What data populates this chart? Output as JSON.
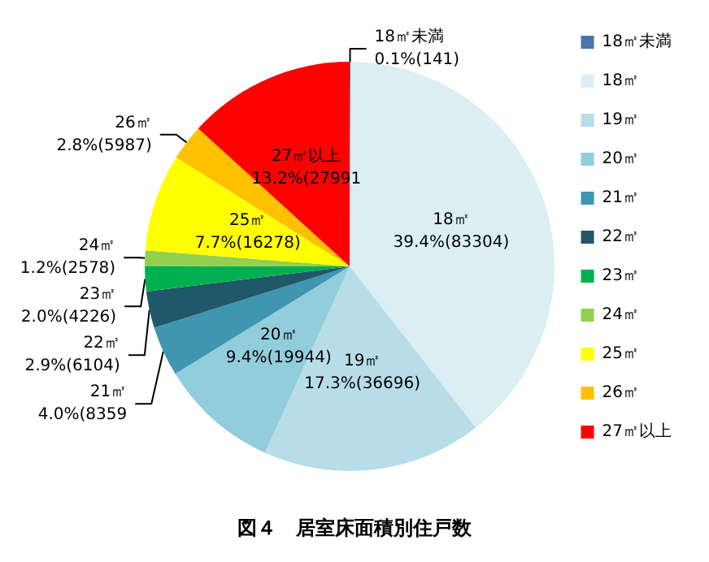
{
  "chart_data": {
    "type": "pie",
    "title": "図４　居室床面積別住戸数",
    "categories": [
      "18㎡未満",
      "18㎡",
      "19㎡",
      "20㎡",
      "21㎡",
      "22㎡",
      "23㎡",
      "24㎡",
      "25㎡",
      "26㎡",
      "27㎡以上"
    ],
    "values": [
      141,
      83304,
      36696,
      19944,
      8359,
      6104,
      4226,
      2578,
      16278,
      5987,
      27991
    ],
    "value_labels": [
      "0.1%(141)",
      "39.4%(83304)",
      "17.3%(36696)",
      "9.4%(19944)",
      "4.0%(8359",
      "2.9%(6104)",
      "2.0%(4226)",
      "1.2%(2578)",
      "7.7%(16278)",
      "2.8%(5987)",
      "13.2%(27991"
    ],
    "colors": [
      "#4a75ab",
      "#daeef3",
      "#b7dde8",
      "#92cddc",
      "#3e96b0",
      "#215868",
      "#00b050",
      "#92d050",
      "#ffff00",
      "#ffc000",
      "#ff0000"
    ],
    "legend": "right"
  }
}
